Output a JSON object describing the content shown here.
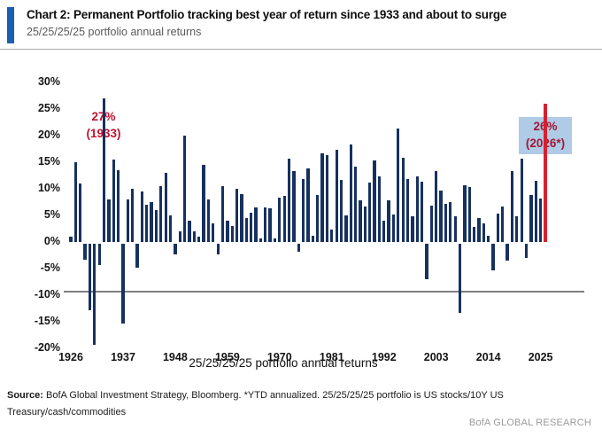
{
  "header": {
    "title": "Chart 2: Permanent Portfolio tracking best year of return since 1933 and about to surge",
    "subtitle": "25/25/25/25 portfolio annual returns"
  },
  "chart_data": {
    "type": "bar",
    "title": "25/25/25/25 portfolio annual returns",
    "start_year": 1926,
    "end_year": 2026,
    "values": [
      1,
      15,
      11,
      -3,
      -12.5,
      -19,
      -4,
      27,
      8,
      15.5,
      13.5,
      -15,
      8,
      10,
      -4.5,
      9.5,
      7,
      7.5,
      6,
      10.5,
      13,
      5,
      -2,
      2,
      20,
      4,
      2,
      1,
      14.5,
      8,
      3.5,
      -2,
      10.5,
      4,
      3,
      10,
      9,
      4.5,
      5.5,
      6.5,
      0.7,
      6.5,
      6.3,
      0.6,
      8.3,
      8.6,
      15.6,
      13.3,
      -1.5,
      11.8,
      13.9,
      1.1,
      8.8,
      16.7,
      16.3,
      2.4,
      17.4,
      11.6,
      5,
      18.3,
      14.1,
      7.8,
      6.6,
      11.1,
      15.4,
      12.4,
      4,
      7.8,
      5.2,
      21.4,
      15.9,
      11.9,
      4.9,
      12.4,
      11.3,
      -6.8,
      6.8,
      13.3,
      9.6,
      7.1,
      7.5,
      4.8,
      -13,
      10.6,
      10.3,
      2.8,
      4.5,
      3.5,
      1.2,
      -5.1,
      5.3,
      6.6,
      -3.3,
      13.4,
      4.8,
      15.7,
      -2.8,
      8.9,
      11.5,
      8.1,
      26
    ],
    "yticks": [
      30,
      25,
      20,
      15,
      10,
      5,
      0,
      -5,
      -10,
      -15,
      -20
    ],
    "ytick_suffix": "%",
    "xticks": [
      1926,
      1937,
      1948,
      1959,
      1970,
      1981,
      1992,
      2003,
      2014,
      2025
    ],
    "ylim": [
      -20,
      30
    ],
    "grid": false,
    "legend": false,
    "bar_color": "#17315F",
    "highlight_year": 2026,
    "highlight_color": "#D6202F",
    "axis_color": "#7f7f7f",
    "annotations": [
      {
        "line1": "27%",
        "line2": "(1933)",
        "year": 1933,
        "color": "#C4122F"
      },
      {
        "line1": "26%",
        "line2": "(2026*)",
        "year": 2026,
        "color": "#9E1A38",
        "bg": "#AFCBE5"
      }
    ]
  },
  "footer": {
    "source_label": "Source:",
    "source_text": " BofA Global Investment Strategy, Bloomberg. *YTD annualized. 25/25/25/25 portfolio is US stocks/10Y US Treasury/cash/commodities",
    "brand": "BofA GLOBAL RESEARCH"
  }
}
